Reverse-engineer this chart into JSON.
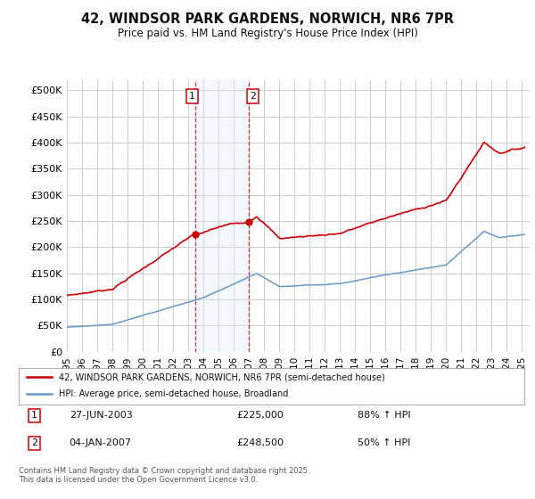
{
  "title_line1": "42, WINDSOR PARK GARDENS, NORWICH, NR6 7PR",
  "title_line2": "Price paid vs. HM Land Registry's House Price Index (HPI)",
  "yticks": [
    0,
    50000,
    100000,
    150000,
    200000,
    250000,
    300000,
    350000,
    400000,
    450000,
    500000
  ],
  "ytick_labels": [
    "£0",
    "£50K",
    "£100K",
    "£150K",
    "£200K",
    "£250K",
    "£300K",
    "£350K",
    "£400K",
    "£450K",
    "£500K"
  ],
  "ylim": [
    0,
    520000
  ],
  "xlim_start": 1995.0,
  "xlim_end": 2025.5,
  "xticks": [
    1995,
    1996,
    1997,
    1998,
    1999,
    2000,
    2001,
    2002,
    2003,
    2004,
    2005,
    2006,
    2007,
    2008,
    2009,
    2010,
    2011,
    2012,
    2013,
    2014,
    2015,
    2016,
    2017,
    2018,
    2019,
    2020,
    2021,
    2022,
    2023,
    2024,
    2025
  ],
  "sale1_year": 2003.49,
  "sale1_price": 225000,
  "sale2_year": 2007.01,
  "sale2_price": 248500,
  "sale1_label": "1",
  "sale2_label": "2",
  "red_line_color": "#cc0000",
  "blue_line_color": "#6699cc",
  "shading_color": "#ddeeff",
  "grid_color": "#cccccc",
  "legend_line1": "42, WINDSOR PARK GARDENS, NORWICH, NR6 7PR (semi-detached house)",
  "legend_line2": "HPI: Average price, semi-detached house, Broadland",
  "annotation1_date": "27-JUN-2003",
  "annotation1_price": "£225,000",
  "annotation1_hpi": "88% ↑ HPI",
  "annotation2_date": "04-JAN-2007",
  "annotation2_price": "£248,500",
  "annotation2_hpi": "50% ↑ HPI",
  "footer": "Contains HM Land Registry data © Crown copyright and database right 2025.\nThis data is licensed under the Open Government Licence v3.0.",
  "background_color": "#ffffff"
}
